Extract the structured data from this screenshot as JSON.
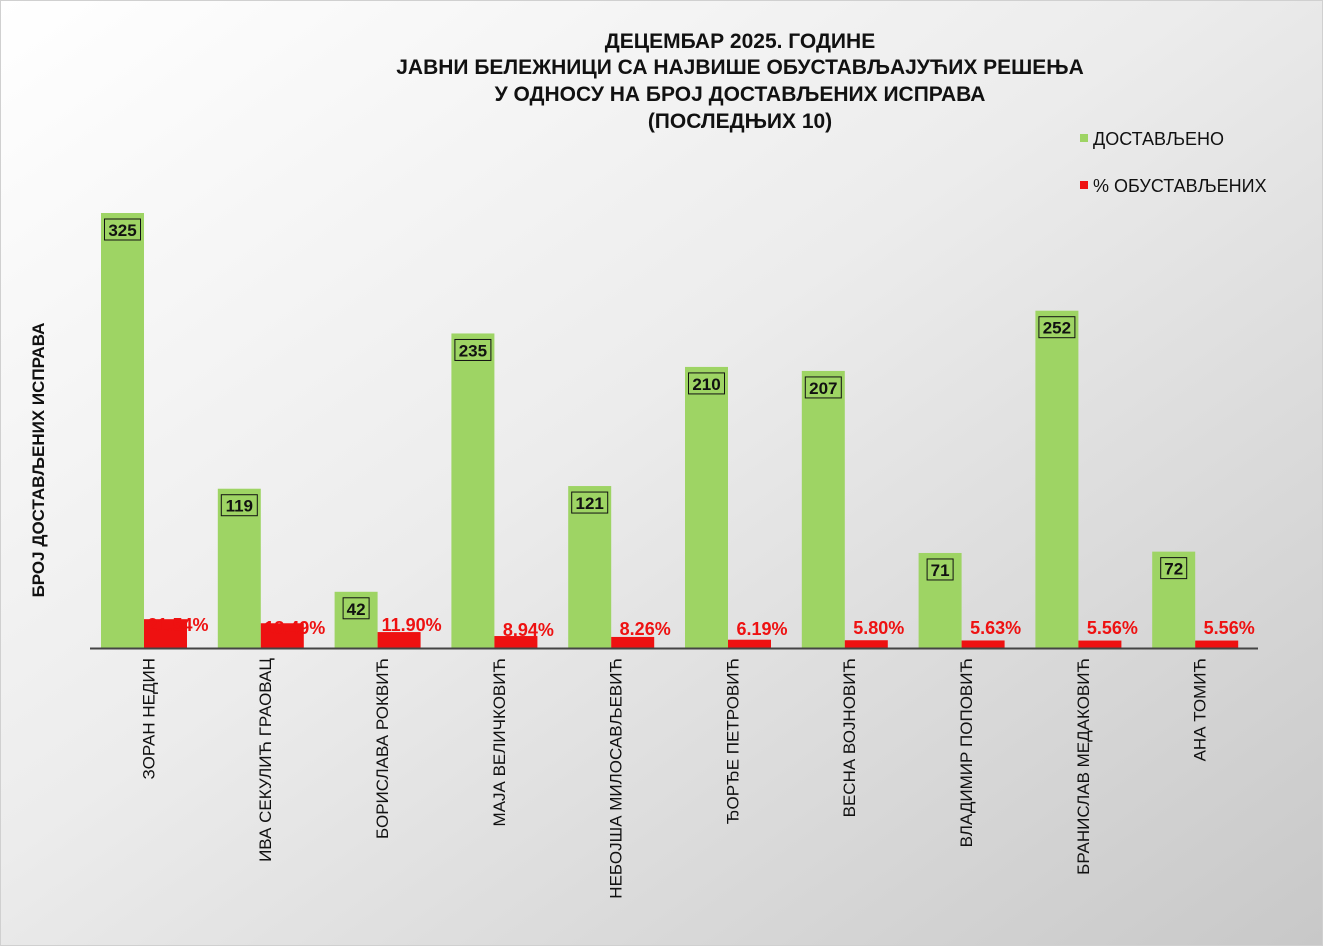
{
  "chart_data": {
    "type": "bar",
    "title": [
      "ДЕЦЕМБАР 2025. ГОДИНЕ",
      "ЈАВНИ БЕЛЕЖНИЦИ СА НАЈВИШЕ ОБУСТАВЉАЈУЋИХ РЕШЕЊА",
      "У ОДНОСУ НА БРОЈ ДОСТАВЉЕНИХ ИСПРАВА",
      "(ПОСЛЕДЊИХ 10)"
    ],
    "ylabel": "БРОЈ ДОСТАВЉЕНИХ ИСПРАВА",
    "xlabel": "",
    "categories": [
      "ЗОРАН НЕДИН",
      "ИВА СЕКУЛИЋ ГРАОВАЦ",
      "БОРИСЛАВА РОКВИЋ",
      "МАЈА ВЕЛИЧКОВИЋ",
      "НЕБОЈША МИЛОСАВЉЕВИЋ",
      "ЂОРЂЕ ПЕТРОВИЋ",
      "ВЕСНА ВОЈНОВИЋ",
      "ВЛАДИМИР ПОПОВИЋ",
      "БРАНИСЛАВ МЕДАКОВИЋ",
      "АНА ТОМИЋ"
    ],
    "series": [
      {
        "name": "ДОСТАВЉЕНО",
        "color": "#9ed464",
        "values": [
          325,
          119,
          42,
          235,
          121,
          210,
          207,
          71,
          252,
          72
        ],
        "labels": [
          "325",
          "119",
          "42",
          "235",
          "121",
          "210",
          "207",
          "71",
          "252",
          "72"
        ]
      },
      {
        "name": "% ОБУСТАВЉЕНИХ",
        "color": "#ee1111",
        "values": [
          21.54,
          18.49,
          11.9,
          8.94,
          8.26,
          6.19,
          5.8,
          5.63,
          5.56,
          5.56
        ],
        "labels": [
          "21.54%",
          "18.49%",
          "11.90%",
          "8.94%",
          "8.26%",
          "6.19%",
          "5.80%",
          "5.63%",
          "5.56%",
          "5.56%"
        ]
      }
    ],
    "ylim": [
      0,
      325
    ],
    "grid": false,
    "legend": "top-right"
  }
}
